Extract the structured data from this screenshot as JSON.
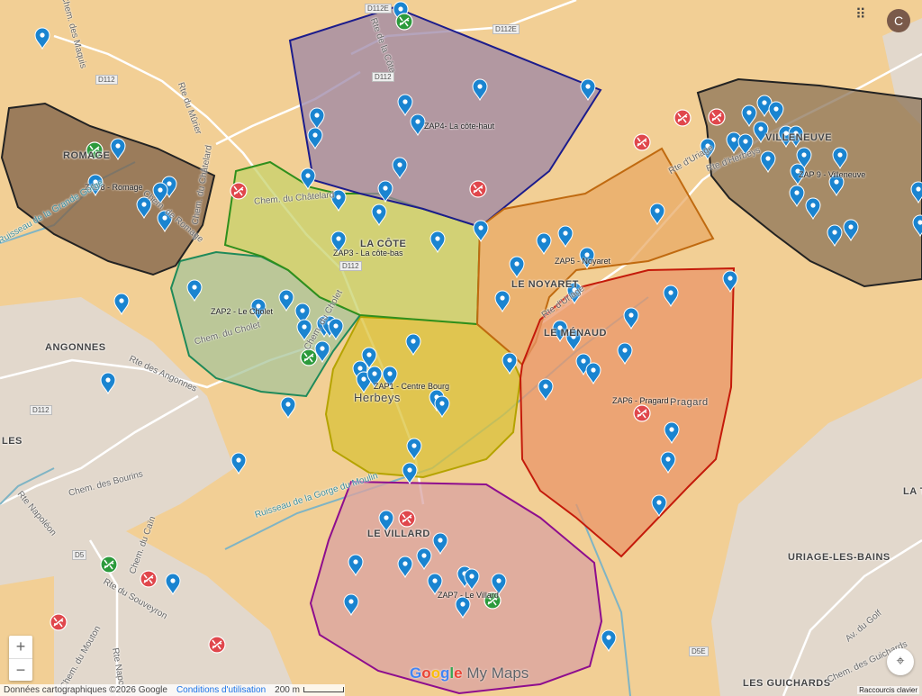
{
  "zones": [
    {
      "label": "ZAP1 - Centre Bourg",
      "stroke": "#b5a300",
      "fill": "#d9c13a"
    },
    {
      "label": "ZAP2 - Le Cholet",
      "stroke": "#1f8a5a",
      "fill": "#a8c49a"
    },
    {
      "label": "ZAP3 - La côte-bas",
      "stroke": "#2f8f1c",
      "fill": "#c7d26b"
    },
    {
      "label": "ZAP4- La côte-haut",
      "stroke": "#1c1c8c",
      "fill": "#9c86a6"
    },
    {
      "label": "ZAP5 - Noyaret",
      "stroke": "#c06a10",
      "fill": "#e8aa66"
    },
    {
      "label": "ZAP6 - Pragard",
      "stroke": "#c41a0a",
      "fill": "#e9966a"
    },
    {
      "label": "ZAP7 - Le Villard",
      "stroke": "#8e0d8e",
      "fill": "#d9a1a1"
    },
    {
      "label": "ZAP8 - Romage",
      "stroke": "#222222",
      "fill": "#7d6048"
    },
    {
      "label": "ZAP 9 - Villeneuve",
      "stroke": "#222222",
      "fill": "#8c7458"
    }
  ],
  "places": {
    "romage": "ROMAGE",
    "lacote": "LA CÔTE",
    "angonnes": "ANGONNES",
    "noyaret": "LE NOYARET",
    "menaud": "LE MÉNAUD",
    "herbeys": "Herbeys",
    "pragard": "Pragard",
    "villard": "LE VILLARD",
    "les": "LES",
    "villeneuve": "VILLENEUVE",
    "uriage": "URIAGE-LES-BAINS",
    "guichards": "LES GUICHARDS",
    "lat": "LA T"
  },
  "roads": {
    "cote": "Rte de la Côte",
    "murier": "Rte du Mûrier",
    "chatelard1": "Chem. du Châtelard",
    "chatelard2": "Chem. du Châtelard",
    "romage": "Chem. de Romage",
    "angonnes": "Rte des Angonnes",
    "cholet": "Chem. du Cholet",
    "cholet2": "Chem. du Cholet",
    "uriage": "Rte d'Uriage",
    "uriage2": "Rte d'Uriage",
    "herbeys": "Rte d'Herbeys",
    "bourins": "Chem. des Bourins",
    "napoleon": "Rte Napoléon",
    "cain": "Chem. du Caïn",
    "souveyron": "Rte du Souveyron",
    "mouton": "Chem. du Mouton",
    "napo2": "Rte Napo",
    "golf": "Av. du Golf",
    "guichards": "Chem. des Guichards",
    "maquis": "Chem. des Maquis",
    "d112e": "D112E",
    "d112e2": "D112E",
    "d112": "D112",
    "d112b": "D112",
    "d112c": "D112",
    "d112d": "D112",
    "d5": "D5",
    "d5e": "D5E"
  },
  "water": {
    "grandegorge": "Ruisseau de la Grande Gorge",
    "moulin": "Ruisseau de la Gorge du Moulin"
  },
  "marker_colors": {
    "pin": "#1a84d0",
    "mosquito_red": "#e0474c",
    "mosquito_green": "#2c9a3c"
  },
  "controls": {
    "zoom_in": "+",
    "zoom_out": "−",
    "fullscreen_icon": "⌖"
  },
  "footer": {
    "data": "Données cartographiques ©2026 Google",
    "terms": "Conditions d'utilisation",
    "scale": "200 m"
  },
  "brand": {
    "g1": "G",
    "g2": "o",
    "g3": "o",
    "g4": "g",
    "g5": "l",
    "g6": "e",
    "mymaps": " My Maps"
  },
  "header": {
    "apps_icon": "⠿",
    "avatar": "C"
  },
  "keyboard": "Raccourcis clavier"
}
